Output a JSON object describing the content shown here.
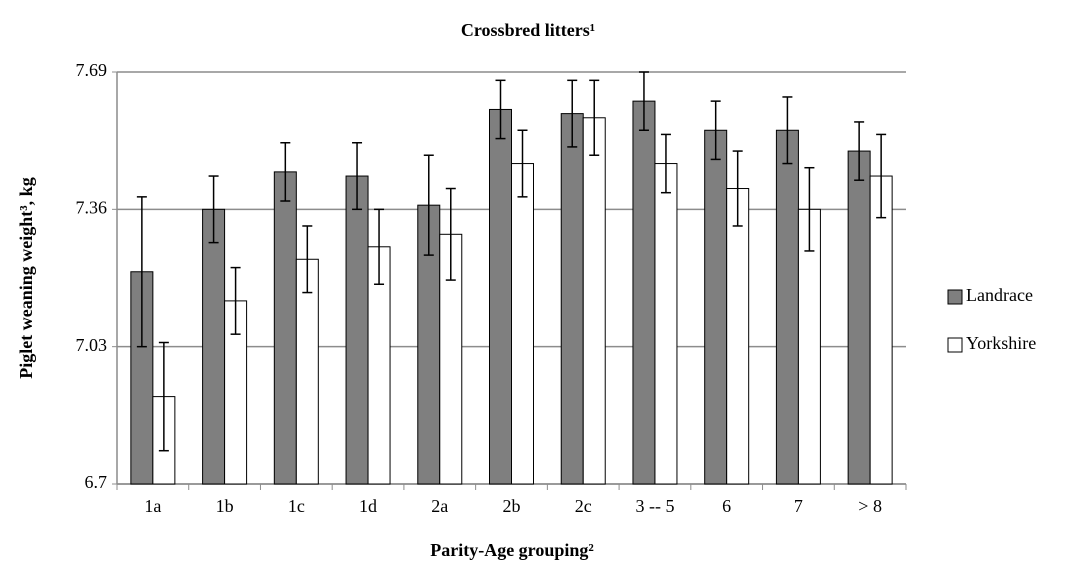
{
  "chart_data": {
    "type": "bar",
    "title": "Crossbred litters¹",
    "x_label": "Parity-Age grouping²",
    "y_label": "Piglet weaning weight³, kg",
    "categories": [
      "1a",
      "1b",
      "1c",
      "1d",
      "2a",
      "2b",
      "2c",
      "3 -- 5",
      "6",
      "7",
      "> 8"
    ],
    "series": [
      {
        "name": "Landrace",
        "color": "#7f7f7f",
        "values": [
          7.21,
          7.36,
          7.45,
          7.44,
          7.37,
          7.6,
          7.59,
          7.62,
          7.55,
          7.55,
          7.5
        ],
        "errors": [
          0.18,
          0.08,
          0.07,
          0.08,
          0.12,
          0.07,
          0.08,
          0.07,
          0.07,
          0.08,
          0.07
        ]
      },
      {
        "name": "Yorkshire",
        "color": "#ffffff",
        "values": [
          6.91,
          7.14,
          7.24,
          7.27,
          7.3,
          7.47,
          7.58,
          7.47,
          7.41,
          7.36,
          7.44
        ],
        "errors": [
          0.13,
          0.08,
          0.08,
          0.09,
          0.11,
          0.08,
          0.09,
          0.07,
          0.09,
          0.1,
          0.1
        ]
      }
    ],
    "ylim": [
      6.7,
      7.69
    ],
    "yticks": [
      6.7,
      7.03,
      7.36,
      7.69
    ],
    "grid": true,
    "legend": "right"
  }
}
